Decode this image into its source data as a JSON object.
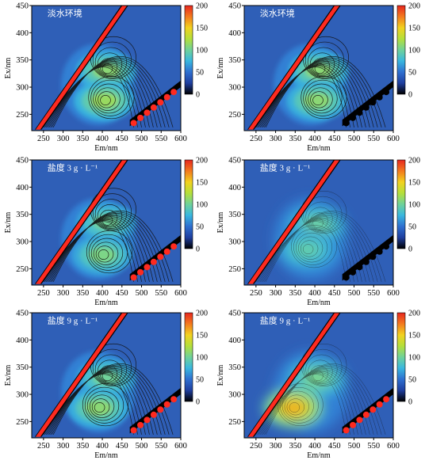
{
  "colors": {
    "background_blue": "#2f5fb7",
    "contour_line": "#111111",
    "scatter_red": "#ff2a1f",
    "scatter_black": "#000000",
    "cmap_stops": [
      "#000000",
      "#1f3f9f",
      "#2f6fd0",
      "#39b7df",
      "#6fd29a",
      "#b4df3b",
      "#f2d21f",
      "#f37a1e",
      "#e7261e"
    ]
  },
  "chart_data": [
    {
      "type": "heatmap",
      "panel": "top-left",
      "label": "淡水环境",
      "xlabel": "Em/nm",
      "ylabel": "Ex/nm",
      "xlim": [
        220,
        600
      ],
      "ylim": [
        220,
        450
      ],
      "xticks": [
        "250",
        "300",
        "350",
        "400",
        "450",
        "500",
        "550",
        "600"
      ],
      "yticks": [
        "250",
        "300",
        "350",
        "400",
        "450"
      ],
      "colorbar": {
        "range": [
          0,
          200
        ],
        "ticks": [
          "0",
          "50",
          "100",
          "150",
          "200"
        ]
      },
      "peaks": [
        {
          "em": 410,
          "ex": 330,
          "intensity": 110
        },
        {
          "em": 405,
          "ex": 275,
          "intensity": 115
        }
      ],
      "render": "contour-filled"
    },
    {
      "type": "heatmap",
      "panel": "top-right",
      "label": "淡水环境",
      "xlabel": "Em/nm",
      "ylabel": "Ex/nm",
      "xlim": [
        220,
        600
      ],
      "ylim": [
        220,
        450
      ],
      "xticks": [
        "250",
        "300",
        "350",
        "400",
        "450",
        "500",
        "550",
        "600"
      ],
      "yticks": [
        "250",
        "300",
        "350",
        "400",
        "450"
      ],
      "colorbar": {
        "range": [
          0,
          200
        ],
        "ticks": [
          "0",
          "50",
          "100",
          "150",
          "200"
        ]
      },
      "peaks": [
        {
          "em": 410,
          "ex": 330,
          "intensity": 110
        },
        {
          "em": 405,
          "ex": 275,
          "intensity": 110
        }
      ],
      "render": "contour-filled"
    },
    {
      "type": "heatmap",
      "panel": "middle-left",
      "label": "盐度 3 g · L⁻¹",
      "xlabel": "Em/nm",
      "ylabel": "Ex/nm",
      "xlim": [
        220,
        600
      ],
      "ylim": [
        220,
        450
      ],
      "xticks": [
        "250",
        "300",
        "350",
        "400",
        "450",
        "500",
        "550",
        "600"
      ],
      "yticks": [
        "250",
        "300",
        "350",
        "400",
        "450"
      ],
      "colorbar": {
        "range": [
          0,
          200
        ],
        "ticks": [
          "0",
          "50",
          "100",
          "150",
          "200"
        ]
      },
      "peaks": [
        {
          "em": 410,
          "ex": 335,
          "intensity": 100
        },
        {
          "em": 400,
          "ex": 275,
          "intensity": 105
        }
      ],
      "render": "contour-filled"
    },
    {
      "type": "heatmap",
      "panel": "middle-right",
      "label": "盐度 3 g · L⁻¹",
      "xlabel": "Em/nm",
      "ylabel": "Ex/nm",
      "xlim": [
        220,
        600
      ],
      "ylim": [
        220,
        450
      ],
      "xticks": [
        "250",
        "300",
        "350",
        "400",
        "450",
        "500",
        "550",
        "600"
      ],
      "yticks": [
        "250",
        "300",
        "350",
        "400",
        "450"
      ],
      "colorbar": {
        "range": [
          0,
          200
        ],
        "ticks": [
          "0",
          "50",
          "100",
          "150",
          "200"
        ]
      },
      "peaks": [
        {
          "em": 405,
          "ex": 330,
          "intensity": 100
        },
        {
          "em": 380,
          "ex": 285,
          "intensity": 95
        }
      ],
      "render": "smooth"
    },
    {
      "type": "heatmap",
      "panel": "bottom-left",
      "label": "盐度 9 g · L⁻¹",
      "xlabel": "Em/nm",
      "ylabel": "Ex/nm",
      "xlim": [
        220,
        600
      ],
      "ylim": [
        220,
        450
      ],
      "xticks": [
        "250",
        "300",
        "350",
        "400",
        "450",
        "500",
        "550",
        "600"
      ],
      "yticks": [
        "250",
        "300",
        "350",
        "400",
        "450"
      ],
      "colorbar": {
        "range": [
          0,
          200
        ],
        "ticks": [
          "0",
          "50",
          "100",
          "150",
          "200"
        ]
      },
      "peaks": [
        {
          "em": 410,
          "ex": 330,
          "intensity": 100
        },
        {
          "em": 390,
          "ex": 275,
          "intensity": 110
        }
      ],
      "render": "contour-filled"
    },
    {
      "type": "heatmap",
      "panel": "bottom-right",
      "label": "盐度 9 g · L⁻¹",
      "xlabel": "Em/nm",
      "ylabel": "Ex/nm",
      "xlim": [
        220,
        600
      ],
      "ylim": [
        220,
        450
      ],
      "xticks": [
        "250",
        "300",
        "350",
        "400",
        "450",
        "500",
        "550",
        "600"
      ],
      "yticks": [
        "250",
        "300",
        "350",
        "400",
        "450"
      ],
      "colorbar": {
        "range": [
          0,
          200
        ],
        "ticks": [
          "0",
          "50",
          "100",
          "150",
          "200"
        ]
      },
      "peaks": [
        {
          "em": 405,
          "ex": 330,
          "intensity": 105
        },
        {
          "em": 345,
          "ex": 275,
          "intensity": 160
        }
      ],
      "render": "smooth"
    }
  ]
}
